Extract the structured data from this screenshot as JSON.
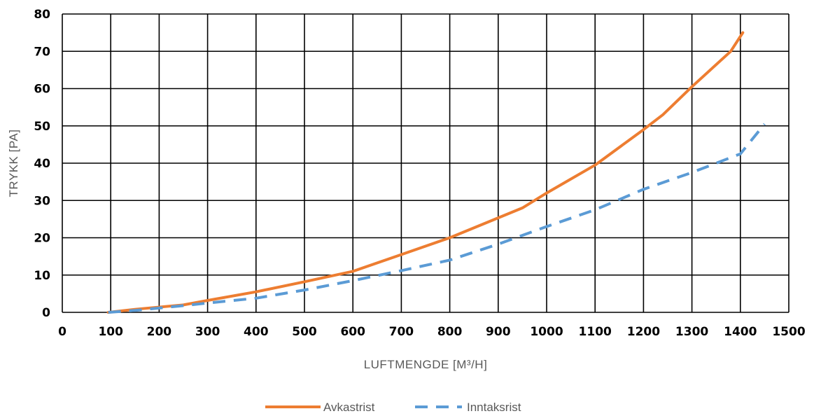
{
  "chart_data": {
    "type": "line",
    "xlabel": "LUFTMENGDE [M³/H]",
    "ylabel": "TRYKK [PA]",
    "xlim": [
      0,
      1500
    ],
    "ylim": [
      0,
      80
    ],
    "xticks": [
      0,
      100,
      200,
      300,
      400,
      500,
      600,
      700,
      800,
      900,
      1000,
      1100,
      1200,
      1300,
      1400,
      1500
    ],
    "yticks": [
      0,
      10,
      20,
      30,
      40,
      50,
      60,
      70,
      80
    ],
    "grid": true,
    "legend_position": "bottom",
    "series": [
      {
        "name": "Avkastrist",
        "color": "#ED7D31",
        "dash": "solid",
        "x": [
          95,
          150,
          250,
          300,
          400,
          500,
          600,
          700,
          800,
          950,
          1000,
          1100,
          1200,
          1240,
          1300,
          1380,
          1405
        ],
        "y": [
          0,
          0.8,
          2,
          3.2,
          5.5,
          8.2,
          11,
          15.5,
          20,
          28,
          32,
          39.5,
          49,
          53,
          60.5,
          70,
          75
        ]
      },
      {
        "name": "Inntaksrist",
        "color": "#5B9BD5",
        "dash": "dashed",
        "x": [
          95,
          150,
          250,
          300,
          400,
          500,
          600,
          700,
          800,
          900,
          1000,
          1100,
          1200,
          1300,
          1400,
          1450
        ],
        "y": [
          0,
          0.5,
          1.8,
          2.5,
          3.8,
          6,
          8.5,
          11.2,
          14,
          18.3,
          23,
          27.5,
          33,
          37.5,
          42.5,
          50.5
        ]
      }
    ]
  }
}
